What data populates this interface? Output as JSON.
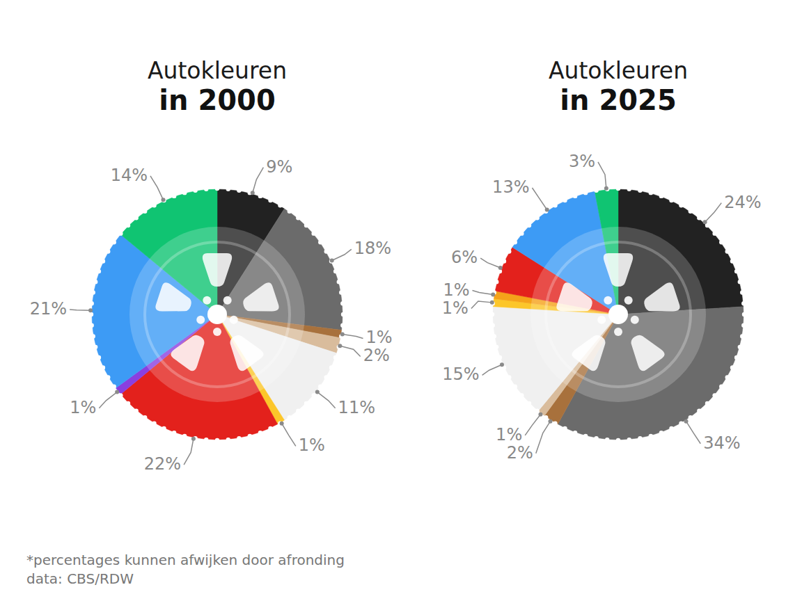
{
  "chart_data": [
    {
      "type": "pie",
      "title": "Autokleuren",
      "subtitle": "in 2000",
      "values": [
        9,
        18,
        1,
        2,
        11,
        1,
        22,
        1,
        21,
        14
      ],
      "value_labels": [
        "9%",
        "18%",
        "1%",
        "2%",
        "11%",
        "1%",
        "22%",
        "1%",
        "21%",
        "14%"
      ],
      "colors": [
        "#222222",
        "#6b6b6b",
        "#a8713c",
        "#d9bc9c",
        "#f0f0f0",
        "#fcc62a",
        "#e3211c",
        "#8a3fe0",
        "#3d9bf5",
        "#10c472"
      ],
      "data_labels": true
    },
    {
      "type": "pie",
      "title": "Autokleuren",
      "subtitle": "in 2025",
      "values": [
        24,
        34,
        2,
        1,
        15,
        1,
        1,
        6,
        13,
        3
      ],
      "value_labels": [
        "24%",
        "34%",
        "2%",
        "1%",
        "15%",
        "1%",
        "1%",
        "6%",
        "13%",
        "3%"
      ],
      "colors": [
        "#222222",
        "#6b6b6b",
        "#a8713c",
        "#d9bc9c",
        "#f0f0f0",
        "#fcc62a",
        "#f5a21a",
        "#e3211c",
        "#3d9bf5",
        "#10c472"
      ],
      "data_labels": true
    }
  ],
  "footer": [
    "*percentages kunnen afwijken door afronding",
    "data: CBS/RDW"
  ]
}
